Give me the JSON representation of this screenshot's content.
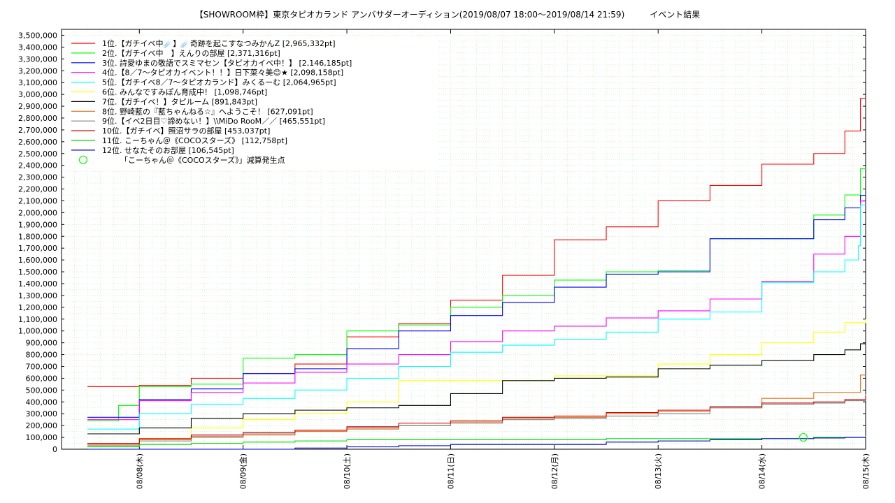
{
  "chart_data": {
    "type": "line",
    "title": "【SHOWROOM枠】東京タピオカランド アンバサダーオーディション(2019/08/07 18:00〜2019/08/14 21:59)　　　イベント結果",
    "ylim": [
      0,
      3550000
    ],
    "yticks": [
      "0",
      "100,000",
      "200,000",
      "300,000",
      "400,000",
      "500,000",
      "600,000",
      "700,000",
      "800,000",
      "900,000",
      "1,000,000",
      "1,100,000",
      "1,200,000",
      "1,300,000",
      "1,400,000",
      "1,500,000",
      "1,600,000",
      "1,700,000",
      "1,800,000",
      "1,900,000",
      "2,000,000",
      "2,100,000",
      "2,200,000",
      "2,300,000",
      "2,400,000",
      "2,500,000",
      "2,600,000",
      "2,700,000",
      "2,800,000",
      "2,900,000",
      "3,000,000",
      "3,100,000",
      "3,200,000",
      "3,300,000",
      "3,400,000",
      "3,500,000"
    ],
    "xticks": [
      "08/08(木)",
      "08/09(金)",
      "08/10(土)",
      "08/11(日)",
      "08/12(月)",
      "08/13(火)",
      "08/14(水)",
      "08/15(木)"
    ],
    "grid": true,
    "legend_position": "top-left",
    "series": [
      {
        "name": "1位.【ガチイベ中☄️】☄️奇跡を起こすなつみかんZ [2,965,332pt]",
        "color": "#ff0000",
        "x": [
          -0.5,
          0,
          0.5,
          1,
          1.5,
          2,
          2.5,
          3,
          3.5,
          4,
          4.5,
          5,
          5.5,
          6,
          6.5,
          6.8,
          6.95,
          7
        ],
        "y": [
          530000,
          540000,
          600000,
          640000,
          720000,
          950000,
          1060000,
          1260000,
          1470000,
          1770000,
          1880000,
          2100000,
          2230000,
          2410000,
          2500000,
          2690000,
          2965332,
          2965332
        ]
      },
      {
        "name": "2位.【ガチイベ中　】えんりの部屋 [2,371,316pt]",
        "color": "#00ff00",
        "x": [
          -0.5,
          -0.2,
          0,
          0.5,
          1,
          1.5,
          2,
          2.5,
          3,
          3.5,
          4,
          4.5,
          5,
          5.5,
          6,
          6.5,
          6.8,
          6.95,
          7
        ],
        "y": [
          240000,
          370000,
          530000,
          550000,
          770000,
          800000,
          1000000,
          1050000,
          1200000,
          1300000,
          1430000,
          1500000,
          1510000,
          1780000,
          1780000,
          1980000,
          2150000,
          2371316,
          2371316
        ]
      },
      {
        "name": "3位. 詩愛ゆまの敬語でスミマセン【タピオカイベ中！】 [2,146,185pt]",
        "color": "#0000ff",
        "x": [
          -0.5,
          0,
          0.5,
          1,
          1.5,
          2,
          2.5,
          3,
          3.5,
          4,
          4.5,
          5,
          5.5,
          6,
          6.5,
          6.8,
          6.95,
          7
        ],
        "y": [
          270000,
          420000,
          510000,
          640000,
          680000,
          850000,
          1000000,
          1130000,
          1240000,
          1370000,
          1480000,
          1500000,
          1780000,
          1780000,
          1940000,
          2040000,
          2146185,
          2146185
        ]
      },
      {
        "name": "4位.【8／7〜タピオカイベント！！】日下菜々美😊★ [2,098,158pt]",
        "color": "#ff00ff",
        "x": [
          -0.5,
          0,
          0.5,
          1,
          1.5,
          2,
          2.5,
          3,
          3.5,
          4,
          4.5,
          5,
          5.5,
          6,
          6.5,
          6.8,
          6.95,
          7
        ],
        "y": [
          250000,
          410000,
          480000,
          560000,
          650000,
          720000,
          800000,
          910000,
          1000000,
          1040000,
          1110000,
          1170000,
          1270000,
          1420000,
          1650000,
          1800000,
          2098158,
          2098158
        ]
      },
      {
        "name": "5位.【ガチイベ8／7〜タピオカランド】みくるーむ [2,064,965pt]",
        "color": "#00ffff",
        "x": [
          -0.5,
          0,
          0.5,
          1,
          1.5,
          2,
          2.5,
          3,
          3.5,
          4,
          4.5,
          5,
          5.5,
          6,
          6.5,
          6.8,
          6.93,
          6.95,
          7
        ],
        "y": [
          170000,
          300000,
          380000,
          430000,
          500000,
          600000,
          700000,
          820000,
          880000,
          930000,
          990000,
          1100000,
          1160000,
          1410000,
          1500000,
          1600000,
          1720000,
          2064965,
          2064965
        ]
      },
      {
        "name": "6位. みんなですみぽん育成中！ [1,098,746pt]",
        "color": "#ffff00",
        "x": [
          -0.5,
          0,
          0.5,
          1,
          1.5,
          2,
          2.5,
          3,
          3.5,
          4,
          4.5,
          5,
          5.5,
          6,
          6.5,
          6.8,
          7
        ],
        "y": [
          30000,
          90000,
          180000,
          250000,
          300000,
          400000,
          580000,
          580000,
          580000,
          620000,
          620000,
          720000,
          800000,
          900000,
          990000,
          1070000,
          1098746
        ]
      },
      {
        "name": "7位.【ガチイベ！】タピルーム [891,843pt]",
        "color": "#000000",
        "x": [
          -0.5,
          0,
          0.5,
          1,
          1.5,
          2,
          2.5,
          3,
          3.5,
          4,
          4.5,
          5,
          5.5,
          6,
          6.5,
          6.8,
          6.95,
          7
        ],
        "y": [
          130000,
          180000,
          260000,
          300000,
          330000,
          350000,
          370000,
          470000,
          580000,
          600000,
          610000,
          680000,
          710000,
          750000,
          800000,
          840000,
          891843,
          891843
        ]
      },
      {
        "name": "8位. 野崎藍の『藍ちゃんねる☆』へようこそ！ [627,091pt]",
        "color": "#e96e14",
        "x": [
          -0.5,
          0,
          0.5,
          1,
          1.5,
          2,
          2.5,
          3,
          3.5,
          4,
          4.5,
          5,
          5.5,
          6,
          6.5,
          6.8,
          6.95,
          7
        ],
        "y": [
          40000,
          80000,
          100000,
          120000,
          150000,
          170000,
          200000,
          230000,
          260000,
          270000,
          300000,
          320000,
          350000,
          430000,
          480000,
          480000,
          627091,
          627091
        ]
      },
      {
        "name": "9位.【イベ2日目♡諦めない！】\\\\MiDo RooM／／ [465,551pt]",
        "color": "#808080",
        "x": [
          -0.5,
          0,
          0.5,
          1,
          1.5,
          2,
          2.5,
          3,
          3.5,
          4,
          4.5,
          5,
          5.5,
          6,
          6.5,
          6.8,
          7
        ],
        "y": [
          30000,
          70000,
          110000,
          130000,
          160000,
          180000,
          200000,
          220000,
          250000,
          260000,
          280000,
          300000,
          350000,
          380000,
          390000,
          410000,
          465551
        ]
      },
      {
        "name": "10位.【ガチイベ】照沼サラの部屋 [453,037pt]",
        "color": "#cc0000",
        "x": [
          -0.5,
          0,
          0.5,
          1,
          1.5,
          2,
          2.5,
          3,
          3.5,
          4,
          4.5,
          5,
          5.5,
          6,
          6.5,
          6.8,
          7
        ],
        "y": [
          50000,
          90000,
          120000,
          140000,
          160000,
          190000,
          220000,
          240000,
          270000,
          280000,
          310000,
          330000,
          360000,
          390000,
          400000,
          420000,
          453037
        ]
      },
      {
        "name": "11位. こーちゃん＠《COCOスターズ》 [112,758pt]",
        "color": "#00dd00",
        "x": [
          -0.5,
          0,
          0.5,
          1,
          1.5,
          2,
          2.5,
          3,
          3.5,
          4,
          4.5,
          5,
          5.5,
          6,
          6.5,
          6.8,
          7
        ],
        "y": [
          20000,
          40000,
          50000,
          60000,
          70000,
          80000,
          80000,
          80000,
          80000,
          80000,
          90000,
          90000,
          90000,
          90000,
          100000,
          100000,
          112758
        ]
      },
      {
        "name": "12位. せなたそのお部屋 [106,545pt]",
        "color": "#0000cc",
        "x": [
          -0.5,
          0,
          0.5,
          1,
          1.5,
          2,
          2.5,
          3,
          3.5,
          4,
          4.5,
          5,
          5.5,
          6,
          6.5,
          6.8,
          7
        ],
        "y": [
          0,
          0,
          0,
          0,
          10000,
          20000,
          30000,
          40000,
          40000,
          40000,
          60000,
          70000,
          80000,
          90000,
          95000,
          100000,
          106545
        ]
      }
    ],
    "marker": {
      "name": "「こーちゃん＠《COCOスターズ》」減算発生点",
      "color": "#00ff00",
      "x": 6.4,
      "y": 100000
    }
  }
}
